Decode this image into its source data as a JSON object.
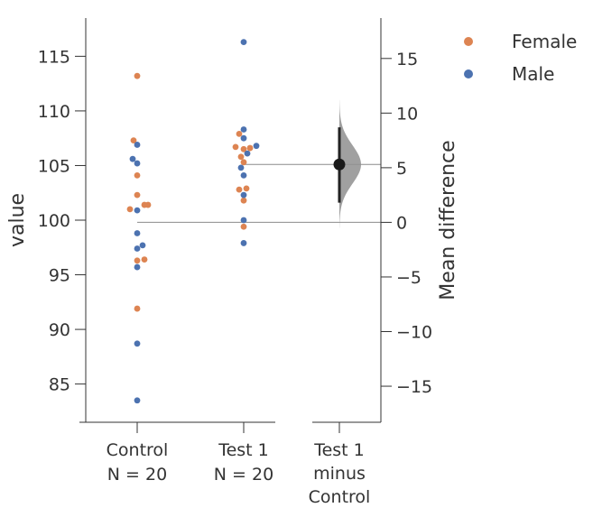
{
  "chart_data": {
    "type": "scatter",
    "subtype": "estimation-plot (swarm + mean difference)",
    "ylabel": "value",
    "right_ylabel": "Mean difference",
    "ylim": [
      81.5,
      118.5
    ],
    "yticks": [
      85,
      90,
      95,
      100,
      105,
      110,
      115
    ],
    "right_ylim": [
      -18.3,
      18.7
    ],
    "right_yticks": [
      -15,
      -10,
      -5,
      0,
      5,
      10,
      15
    ],
    "groups": [
      {
        "label_line1": "Control",
        "label_line2": "N = 20",
        "mean": 99.8
      },
      {
        "label_line1": "Test 1",
        "label_line2": "N = 20",
        "mean": 105.1
      }
    ],
    "contrast": {
      "label_lines": [
        "Test 1",
        "minus",
        "Control"
      ],
      "mean_difference": 5.3,
      "ci": [
        1.8,
        8.7
      ],
      "distribution_extent": [
        -0.5,
        11.2
      ]
    },
    "legend": {
      "position": "top-right",
      "entries": [
        {
          "name": "Female",
          "color": "#dd8452"
        },
        {
          "name": "Male",
          "color": "#4c72b0"
        }
      ]
    },
    "series": [
      {
        "name": "Female",
        "color": "#dd8452",
        "points": [
          {
            "group": 0,
            "offset": 0,
            "value": 113.2
          },
          {
            "group": 0,
            "offset": -4,
            "value": 107.3
          },
          {
            "group": 0,
            "offset": 0,
            "value": 104.1
          },
          {
            "group": 0,
            "offset": 0,
            "value": 102.3
          },
          {
            "group": 0,
            "offset": -8,
            "value": 101.0
          },
          {
            "group": 0,
            "offset": 8,
            "value": 101.4
          },
          {
            "group": 0,
            "offset": 12,
            "value": 101.4
          },
          {
            "group": 0,
            "offset": 0,
            "value": 96.3
          },
          {
            "group": 0,
            "offset": 8,
            "value": 96.4
          },
          {
            "group": 0,
            "offset": 0,
            "value": 91.9
          },
          {
            "group": 1,
            "offset": -5,
            "value": 107.9
          },
          {
            "group": 1,
            "offset": -9,
            "value": 106.7
          },
          {
            "group": 1,
            "offset": 0,
            "value": 106.5
          },
          {
            "group": 1,
            "offset": 7,
            "value": 106.6
          },
          {
            "group": 1,
            "offset": -3,
            "value": 105.8
          },
          {
            "group": 1,
            "offset": 0,
            "value": 105.3
          },
          {
            "group": 1,
            "offset": -5,
            "value": 102.8
          },
          {
            "group": 1,
            "offset": 3,
            "value": 102.9
          },
          {
            "group": 1,
            "offset": 0,
            "value": 101.8
          },
          {
            "group": 1,
            "offset": 0,
            "value": 99.4
          }
        ]
      },
      {
        "name": "Male",
        "color": "#4c72b0",
        "points": [
          {
            "group": 0,
            "offset": 0,
            "value": 106.9
          },
          {
            "group": 0,
            "offset": -5,
            "value": 105.6
          },
          {
            "group": 0,
            "offset": 0,
            "value": 105.2
          },
          {
            "group": 0,
            "offset": 0,
            "value": 100.9
          },
          {
            "group": 0,
            "offset": 0,
            "value": 98.8
          },
          {
            "group": 0,
            "offset": 6,
            "value": 97.7
          },
          {
            "group": 0,
            "offset": 0,
            "value": 97.4
          },
          {
            "group": 0,
            "offset": 0,
            "value": 95.7
          },
          {
            "group": 0,
            "offset": 0,
            "value": 88.7
          },
          {
            "group": 0,
            "offset": 0,
            "value": 83.5
          },
          {
            "group": 1,
            "offset": 0,
            "value": 116.3
          },
          {
            "group": 1,
            "offset": 0,
            "value": 108.3
          },
          {
            "group": 1,
            "offset": 0,
            "value": 107.5
          },
          {
            "group": 1,
            "offset": 14,
            "value": 106.8
          },
          {
            "group": 1,
            "offset": 4,
            "value": 106.1
          },
          {
            "group": 1,
            "offset": -3,
            "value": 104.8
          },
          {
            "group": 1,
            "offset": 0,
            "value": 104.1
          },
          {
            "group": 1,
            "offset": 0,
            "value": 102.3
          },
          {
            "group": 1,
            "offset": 0,
            "value": 100.0
          },
          {
            "group": 1,
            "offset": 0,
            "value": 97.9
          }
        ]
      }
    ],
    "colors": {
      "axis": "#333333",
      "mean_line": "#8c8c8c",
      "distribution_fill": "#8f8f8f",
      "ci_line": "#222222",
      "estimate_dot": "#1a1a1a"
    }
  }
}
